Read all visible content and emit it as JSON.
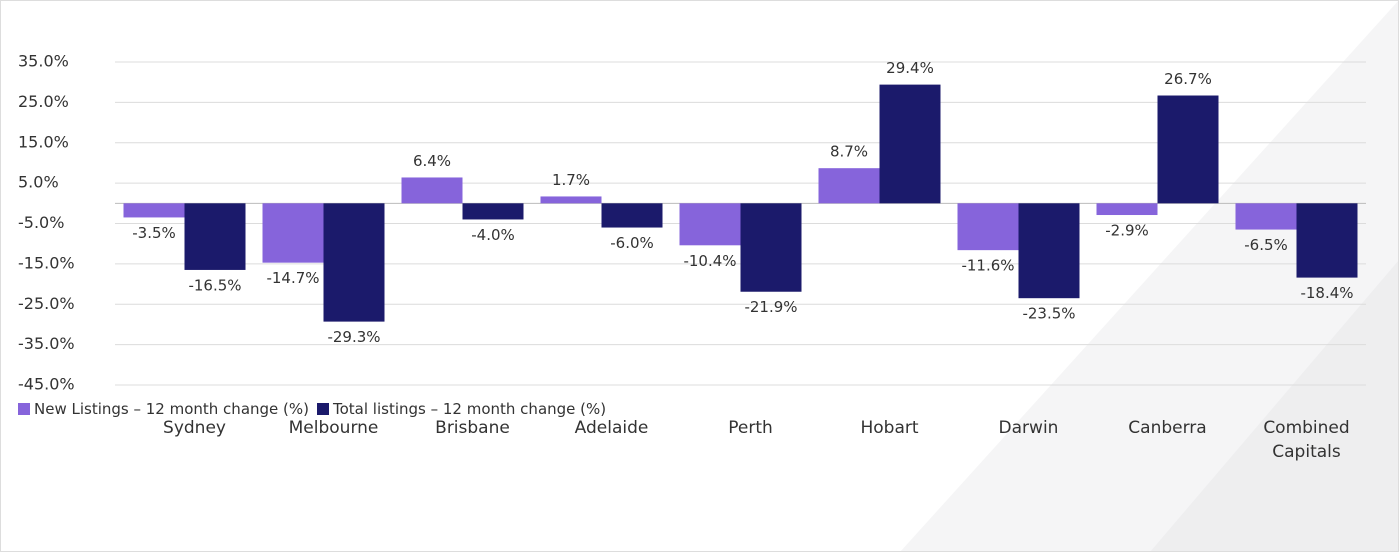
{
  "chart_data": {
    "type": "bar",
    "categories": [
      "Sydney",
      "Melbourne",
      "Brisbane",
      "Adelaide",
      "Perth",
      "Hobart",
      "Darwin",
      "Canberra",
      "Combined Capitals"
    ],
    "series": [
      {
        "name": "New Listings – 12 month change (%)",
        "color": "#8664db",
        "values": [
          -3.5,
          -14.7,
          6.4,
          1.7,
          -10.4,
          8.7,
          -11.6,
          -2.9,
          -6.5
        ],
        "value_labels": [
          "-3.5%",
          "-14.7%",
          "6.4%",
          "1.7%",
          "-10.4%",
          "8.7%",
          "-11.6%",
          "-2.9%",
          "-6.5%"
        ]
      },
      {
        "name": "Total listings – 12 month change (%)",
        "color": "#1b1a6b",
        "values": [
          -16.5,
          -29.3,
          -4.0,
          -6.0,
          -21.9,
          29.4,
          -23.5,
          26.7,
          -18.4
        ],
        "value_labels": [
          "-16.5%",
          "-29.3%",
          "-4.0%",
          "-6.0%",
          "-21.9%",
          "29.4%",
          "-23.5%",
          "26.7%",
          "-18.4%"
        ]
      }
    ],
    "ylim": [
      -45,
      35
    ],
    "yticks": [
      {
        "value": -45,
        "label": "-45.0%"
      },
      {
        "value": -35,
        "label": "-35.0%"
      },
      {
        "value": -25,
        "label": "-25.0%"
      },
      {
        "value": -15,
        "label": "-15.0%"
      },
      {
        "value": -5,
        "label": "-5.0%"
      },
      {
        "value": 5,
        "label": "5.0%"
      },
      {
        "value": 15,
        "label": "15.0%"
      },
      {
        "value": 25,
        "label": "25.0%"
      },
      {
        "value": 35,
        "label": "35.0%"
      }
    ],
    "grid": true,
    "legend": "bottom-left"
  }
}
